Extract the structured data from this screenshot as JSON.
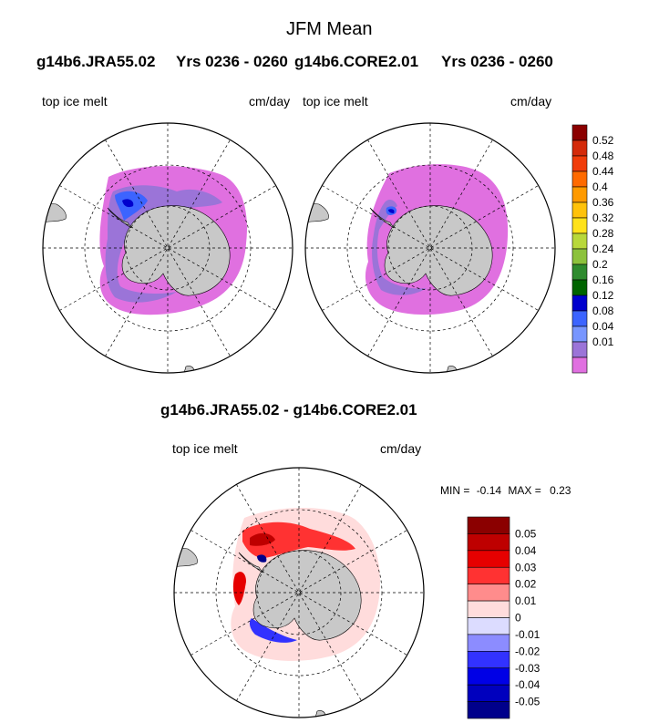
{
  "figure": {
    "title": "JFM Mean",
    "panel_left": {
      "case": "g14b6.JRA55.02",
      "years": "Yrs 0236 - 0260",
      "var_label": "top ice melt",
      "units": "cm/day"
    },
    "panel_right": {
      "case": "g14b6.CORE2.01",
      "years": "Yrs 0236 - 0260",
      "var_label": "top ice melt",
      "units": "cm/day"
    },
    "diff_panel": {
      "title": "g14b6.JRA55.02 - g14b6.CORE2.01",
      "var_label": "top ice melt",
      "units": "cm/day",
      "min_label": "MIN =",
      "min_value": "-0.14",
      "max_label": "MAX =",
      "max_value": "0.23"
    }
  },
  "colorbar_top": {
    "labels": [
      "0.52",
      "0.48",
      "0.44",
      "0.4",
      "0.36",
      "0.32",
      "0.28",
      "0.24",
      "0.2",
      "0.16",
      "0.12",
      "0.08",
      "0.04",
      "0.01"
    ],
    "colors": [
      "#8b0000",
      "#d42a0a",
      "#f03c0a",
      "#ff6a00",
      "#ff9a00",
      "#ffc20a",
      "#ffe21a",
      "#b8d83a",
      "#8cc23c",
      "#2e8b2e",
      "#006400",
      "#0000cd",
      "#3c64ff",
      "#7896ff",
      "#9b74d8",
      "#e070e0"
    ]
  },
  "colorbar_diff": {
    "labels": [
      "0.05",
      "0.04",
      "0.03",
      "0.02",
      "0.01",
      "0",
      "-0.01",
      "-0.02",
      "-0.03",
      "-0.04",
      "-0.05"
    ],
    "colors": [
      "#8b0000",
      "#be0000",
      "#e60000",
      "#ff3232",
      "#ff8c8c",
      "#ffdcdc",
      "#dcdcff",
      "#8c8cff",
      "#3232ff",
      "#0000e6",
      "#0000be",
      "#00008b"
    ]
  },
  "colors": {
    "land": "#c8c8c8",
    "melt_pink": "#e070e0",
    "melt_purple": "#9b74d8",
    "melt_blue": "#3c64ff",
    "melt_dark": "#0000cd",
    "diff_pos": "#e60000",
    "diff_pos_light": "#ffdcdc",
    "diff_neg": "#3232ff"
  }
}
